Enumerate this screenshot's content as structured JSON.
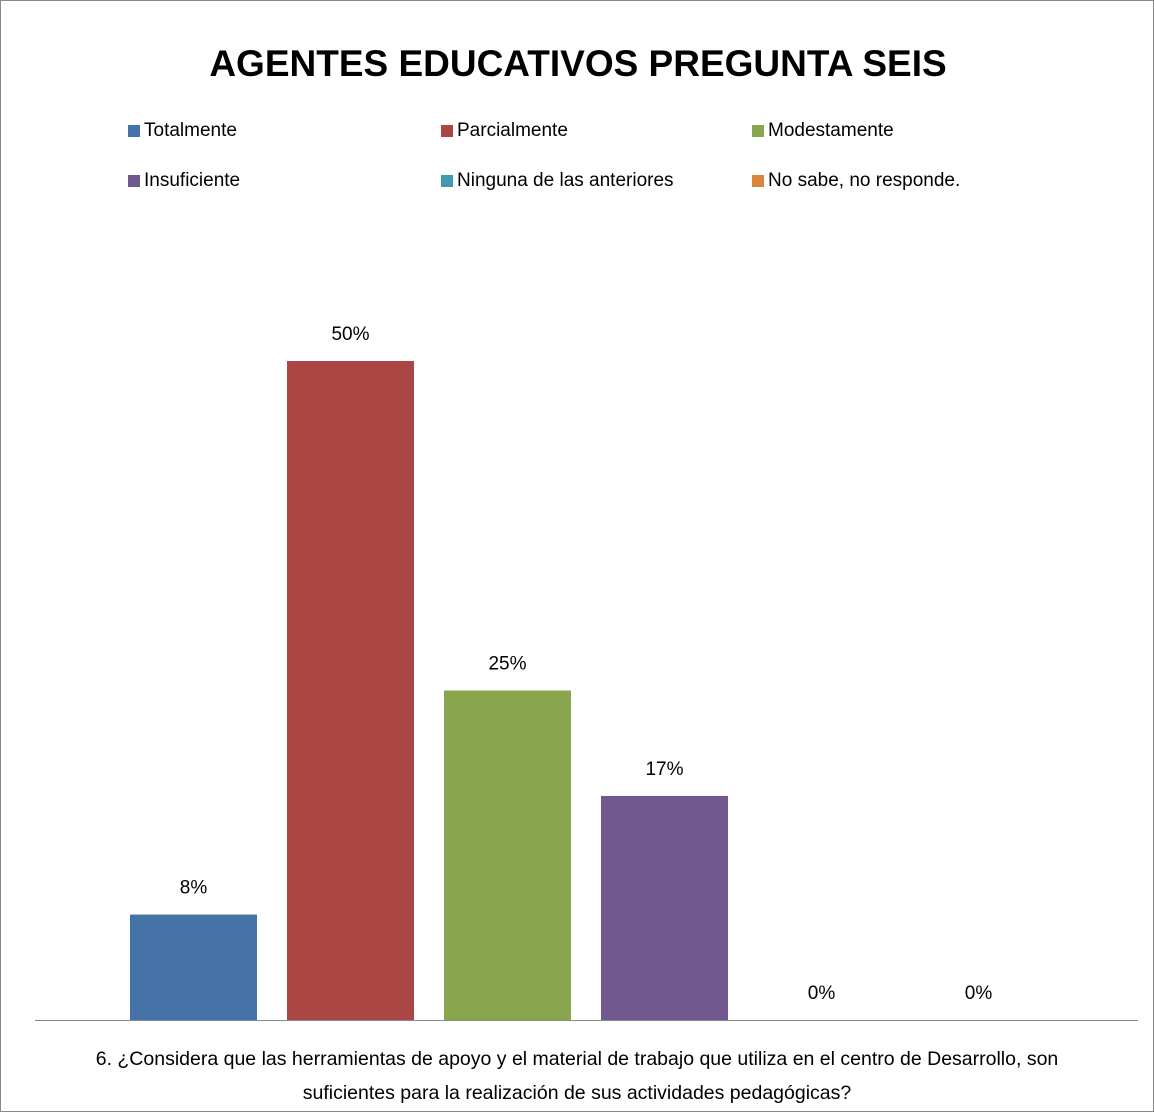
{
  "chart_data": {
    "type": "bar",
    "title": "AGENTES EDUCATIVOS PREGUNTA SEIS",
    "categories": [
      "6. ¿Considera que las herramientas de apoyo y el material de trabajo que utiliza  en el centro de Desarrollo, son suficientes para la realización de sus actividades pedagógicas?"
    ],
    "series": [
      {
        "name": "Totalmente",
        "color": "#4572a7",
        "values": [
          8
        ],
        "value_labels": [
          "8%"
        ]
      },
      {
        "name": "Parcialmente",
        "color": "#aa4643",
        "values": [
          50
        ],
        "value_labels": [
          "50%"
        ]
      },
      {
        "name": "Modestamente",
        "color": "#89a54e",
        "values": [
          25
        ],
        "value_labels": [
          "25%"
        ]
      },
      {
        "name": "Insuficiente",
        "color": "#71588f",
        "values": [
          17
        ],
        "value_labels": [
          "17%"
        ]
      },
      {
        "name": "Ninguna de las anteriores",
        "color": "#4198af",
        "values": [
          0
        ],
        "value_labels": [
          "0%"
        ]
      },
      {
        "name": "No sabe, no responde.",
        "color": "#db843d",
        "values": [
          0
        ],
        "value_labels": [
          "0%"
        ]
      }
    ],
    "legend": "top"
  }
}
